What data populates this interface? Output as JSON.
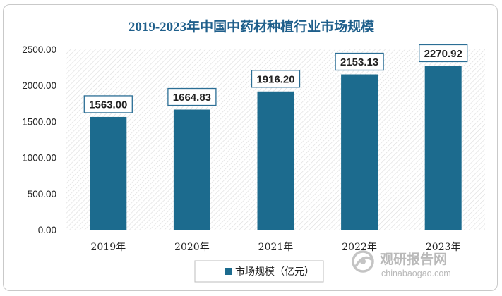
{
  "chart_data": {
    "type": "bar",
    "title": "2019-2023年中国中药材种植行业市场规模",
    "categories": [
      "2019年",
      "2020年",
      "2021年",
      "2022年",
      "2023年"
    ],
    "series": [
      {
        "name": "市场规模（亿元）",
        "values": [
          1563.0,
          1664.83,
          1916.2,
          2153.13,
          2270.92
        ]
      }
    ],
    "data_labels": [
      "1563.00",
      "1664.83",
      "1916.20",
      "2153.13",
      "2270.92"
    ],
    "y_ticks": [
      "0.00",
      "500.00",
      "1000.00",
      "1500.00",
      "2000.00",
      "2500.00"
    ],
    "ylim": [
      0,
      2500
    ],
    "xlabel": "",
    "ylabel": "",
    "legend_position": "bottom-center",
    "grid": false
  },
  "colors": {
    "bar": "#1c6b8e",
    "title": "#1f5f8b",
    "label_border": "#2b6e95",
    "hatch": "#dcdcdc",
    "watermark": "#b9b9b9"
  },
  "watermark": {
    "name": "观研报告网",
    "url": "chinabaogao.com",
    "logo_icon": "circle-swirl-logo-icon"
  }
}
